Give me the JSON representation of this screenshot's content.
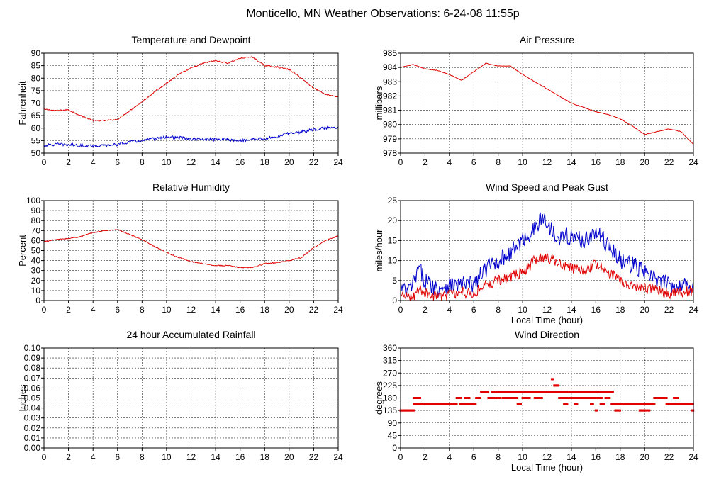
{
  "page": {
    "title": "Monticello, MN Weather Observations: 6-24-08 11:55p"
  },
  "colors": {
    "red": "#e00000",
    "blue": "#0000cc",
    "grid": "#000000"
  },
  "chart_data": [
    {
      "id": "temp",
      "type": "line",
      "title": "Temperature and Dewpoint",
      "xlabel": "",
      "ylabel": "Fahrenheit",
      "xlim": [
        0,
        24
      ],
      "ylim": [
        50,
        90
      ],
      "xticks": [
        0,
        2,
        4,
        6,
        8,
        10,
        12,
        14,
        16,
        18,
        20,
        22,
        24
      ],
      "yticks": [
        50,
        55,
        60,
        65,
        70,
        75,
        80,
        85,
        90
      ],
      "grid": true,
      "series": [
        {
          "color": "#e00000",
          "noise": 0.25,
          "points": [
            [
              0,
              67.5
            ],
            [
              1,
              67
            ],
            [
              2,
              67.3
            ],
            [
              3,
              65
            ],
            [
              4,
              63
            ],
            [
              5,
              63
            ],
            [
              6,
              63.5
            ],
            [
              7,
              67
            ],
            [
              8,
              70.5
            ],
            [
              9,
              74.5
            ],
            [
              10,
              78
            ],
            [
              11,
              81.5
            ],
            [
              12,
              84
            ],
            [
              13,
              86
            ],
            [
              14,
              87
            ],
            [
              15,
              86
            ],
            [
              16,
              88
            ],
            [
              17,
              88.5
            ],
            [
              18,
              85
            ],
            [
              19,
              84.5
            ],
            [
              20,
              83.5
            ],
            [
              21,
              80
            ],
            [
              22,
              76
            ],
            [
              23,
              73.5
            ],
            [
              24,
              72.5
            ]
          ]
        },
        {
          "color": "#0000cc",
          "noise": 0.6,
          "points": [
            [
              0,
              53
            ],
            [
              1,
              53.5
            ],
            [
              2,
              53.3
            ],
            [
              3,
              53
            ],
            [
              4,
              53
            ],
            [
              5,
              53
            ],
            [
              6,
              53.5
            ],
            [
              7,
              54.5
            ],
            [
              8,
              55
            ],
            [
              9,
              55.8
            ],
            [
              10,
              56.5
            ],
            [
              11,
              56.2
            ],
            [
              12,
              55.5
            ],
            [
              13,
              55.5
            ],
            [
              14,
              55.5
            ],
            [
              15,
              55.5
            ],
            [
              16,
              55
            ],
            [
              17,
              55.5
            ],
            [
              18,
              55.8
            ],
            [
              19,
              56.5
            ],
            [
              20,
              58
            ],
            [
              21,
              58.5
            ],
            [
              22,
              59.5
            ],
            [
              23,
              60
            ],
            [
              24,
              60.5
            ]
          ]
        }
      ]
    },
    {
      "id": "pressure",
      "type": "line",
      "title": "Air Pressure",
      "xlabel": "",
      "ylabel": "millibars",
      "xlim": [
        0,
        24
      ],
      "ylim": [
        978,
        985
      ],
      "xticks": [
        0,
        2,
        4,
        6,
        8,
        10,
        12,
        14,
        16,
        18,
        20,
        22,
        24
      ],
      "yticks": [
        978,
        979,
        980,
        981,
        982,
        983,
        984,
        985
      ],
      "grid": true,
      "series": [
        {
          "color": "#e00000",
          "noise": 0.02,
          "points": [
            [
              0,
              984
            ],
            [
              1,
              984.2
            ],
            [
              2,
              983.9
            ],
            [
              3,
              983.8
            ],
            [
              4,
              983.5
            ],
            [
              5,
              983.1
            ],
            [
              6,
              983.7
            ],
            [
              7,
              984.3
            ],
            [
              8,
              984.1
            ],
            [
              9,
              984.1
            ],
            [
              10,
              983.5
            ],
            [
              11,
              983
            ],
            [
              12,
              982.5
            ],
            [
              13,
              982
            ],
            [
              14,
              981.5
            ],
            [
              15,
              981.2
            ],
            [
              16,
              980.9
            ],
            [
              17,
              980.7
            ],
            [
              18,
              980.4
            ],
            [
              19,
              979.9
            ],
            [
              20,
              979.3
            ],
            [
              21,
              979.5
            ],
            [
              22,
              979.7
            ],
            [
              23,
              979.5
            ],
            [
              24,
              978.6
            ]
          ]
        }
      ]
    },
    {
      "id": "humidity",
      "type": "line",
      "title": "Relative Humidity",
      "xlabel": "",
      "ylabel": "Percent",
      "xlim": [
        0,
        24
      ],
      "ylim": [
        0,
        100
      ],
      "xticks": [
        0,
        2,
        4,
        6,
        8,
        10,
        12,
        14,
        16,
        18,
        20,
        22,
        24
      ],
      "yticks": [
        0,
        10,
        20,
        30,
        40,
        50,
        60,
        70,
        80,
        90,
        100
      ],
      "grid": true,
      "series": [
        {
          "color": "#e00000",
          "noise": 0.5,
          "points": [
            [
              0,
              59
            ],
            [
              1,
              61
            ],
            [
              2,
              62
            ],
            [
              3,
              64
            ],
            [
              4,
              68
            ],
            [
              5,
              70
            ],
            [
              6,
              71
            ],
            [
              7,
              66
            ],
            [
              8,
              61
            ],
            [
              9,
              54
            ],
            [
              10,
              48
            ],
            [
              11,
              43
            ],
            [
              12,
              39
            ],
            [
              13,
              37
            ],
            [
              14,
              35
            ],
            [
              15,
              35
            ],
            [
              16,
              33
            ],
            [
              17,
              33
            ],
            [
              18,
              37
            ],
            [
              19,
              38
            ],
            [
              20,
              40
            ],
            [
              21,
              43
            ],
            [
              22,
              53
            ],
            [
              23,
              60
            ],
            [
              24,
              65
            ]
          ]
        }
      ]
    },
    {
      "id": "wind",
      "type": "line",
      "title": "Wind Speed and Peak Gust",
      "xlabel": "Local Time (hour)",
      "ylabel": "miles/hour",
      "xlim": [
        0,
        24
      ],
      "ylim": [
        0,
        25
      ],
      "xticks": [
        0,
        2,
        4,
        6,
        8,
        10,
        12,
        14,
        16,
        18,
        20,
        22,
        24
      ],
      "yticks": [
        0,
        5,
        10,
        15,
        20,
        25
      ],
      "grid": true,
      "series": [
        {
          "color": "#0000cc",
          "noise": 2.2,
          "points": [
            [
              0,
              3
            ],
            [
              0.5,
              2
            ],
            [
              1,
              4
            ],
            [
              1.5,
              8
            ],
            [
              2,
              5
            ],
            [
              3,
              3
            ],
            [
              4,
              4
            ],
            [
              5,
              4
            ],
            [
              6,
              4
            ],
            [
              7,
              8
            ],
            [
              8,
              10
            ],
            [
              9,
              12
            ],
            [
              10,
              15
            ],
            [
              11,
              18
            ],
            [
              11.7,
              21
            ],
            [
              12,
              19
            ],
            [
              13,
              16
            ],
            [
              14,
              16
            ],
            [
              15,
              15
            ],
            [
              16,
              17
            ],
            [
              17,
              14
            ],
            [
              18,
              10
            ],
            [
              19,
              9
            ],
            [
              20,
              7
            ],
            [
              21,
              5
            ],
            [
              22,
              4
            ],
            [
              23,
              4
            ],
            [
              24,
              4
            ]
          ]
        },
        {
          "color": "#e00000",
          "noise": 1.4,
          "points": [
            [
              0,
              1
            ],
            [
              1,
              1
            ],
            [
              1.5,
              3
            ],
            [
              2,
              2
            ],
            [
              3,
              1
            ],
            [
              4,
              1.5
            ],
            [
              5,
              2
            ],
            [
              6,
              2
            ],
            [
              7,
              4
            ],
            [
              8,
              5
            ],
            [
              9,
              6
            ],
            [
              10,
              7
            ],
            [
              11,
              10
            ],
            [
              12,
              11
            ],
            [
              13,
              9
            ],
            [
              14,
              8
            ],
            [
              15,
              7.5
            ],
            [
              16,
              9
            ],
            [
              17,
              7
            ],
            [
              18,
              5
            ],
            [
              19,
              4
            ],
            [
              20,
              3
            ],
            [
              21,
              2.5
            ],
            [
              22,
              1.5
            ],
            [
              23,
              2
            ],
            [
              24,
              2.5
            ]
          ]
        }
      ]
    },
    {
      "id": "rain",
      "type": "line",
      "title": "24 hour Accumulated Rainfall",
      "xlabel": "",
      "ylabel": "Inches",
      "xlim": [
        0,
        24
      ],
      "ylim": [
        0,
        0.1
      ],
      "xticks": [
        0,
        2,
        4,
        6,
        8,
        10,
        12,
        14,
        16,
        18,
        20,
        22,
        24
      ],
      "yticks": [
        "0.00",
        "0.01",
        "0.02",
        "0.03",
        "0.04",
        "0.05",
        "0.06",
        "0.07",
        "0.08",
        "0.09",
        "0.10"
      ],
      "grid": true,
      "series": [
        {
          "color": "#e00000",
          "noise": 0,
          "points": [
            [
              0,
              0
            ],
            [
              24,
              0
            ]
          ]
        }
      ]
    },
    {
      "id": "direction",
      "type": "scatter",
      "title": "Wind Direction",
      "xlabel": "Local Time (hour)",
      "ylabel": "degrees",
      "xlim": [
        0,
        24
      ],
      "ylim": [
        0,
        360
      ],
      "xticks": [
        0,
        2,
        4,
        6,
        8,
        10,
        12,
        14,
        16,
        18,
        20,
        22,
        24
      ],
      "yticks": [
        0,
        45,
        90,
        135,
        180,
        225,
        270,
        315,
        360
      ],
      "grid": true,
      "series": [
        {
          "color": "#e00000",
          "segments": [
            [
              0,
              1.1,
              135
            ],
            [
              1.1,
              1.6,
              180
            ],
            [
              1.1,
              4.6,
              158
            ],
            [
              4.6,
              5.0,
              180
            ],
            [
              4.9,
              6.2,
              158
            ],
            [
              5.3,
              5.7,
              180
            ],
            [
              6.2,
              6.6,
              180
            ],
            [
              6.6,
              7.2,
              203
            ],
            [
              7.2,
              8.2,
              180
            ],
            [
              7.5,
              12.3,
              203
            ],
            [
              8.4,
              9.6,
              180
            ],
            [
              9.6,
              9.9,
              158
            ],
            [
              10,
              10.6,
              180
            ],
            [
              11,
              11.6,
              180
            ],
            [
              12.4,
              12.5,
              248
            ],
            [
              12.6,
              13.0,
              225
            ],
            [
              12.3,
              16.8,
              203
            ],
            [
              13.0,
              16.5,
              180
            ],
            [
              13.6,
              14.6,
              180
            ],
            [
              13.4,
              13.7,
              158
            ],
            [
              14.3,
              14.5,
              158
            ],
            [
              15.6,
              15.8,
              158
            ],
            [
              16.0,
              16.1,
              135
            ],
            [
              16.4,
              16.7,
              158
            ],
            [
              16.8,
              17.2,
              180
            ],
            [
              16.9,
              17.4,
              203
            ],
            [
              17.3,
              20.8,
              158
            ],
            [
              17.6,
              17.8,
              135
            ],
            [
              17.9,
              18.0,
              135
            ],
            [
              19.6,
              20.1,
              135
            ],
            [
              20.3,
              20.4,
              135
            ],
            [
              20.8,
              21.8,
              180
            ],
            [
              21.8,
              24,
              158
            ],
            [
              22.4,
              22.8,
              180
            ],
            [
              23.9,
              24,
              135
            ]
          ]
        }
      ]
    }
  ]
}
